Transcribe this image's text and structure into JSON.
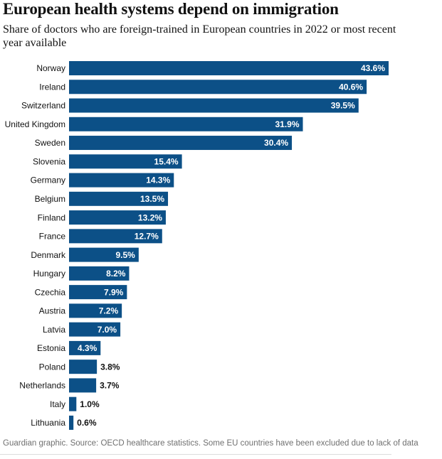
{
  "chart_data": {
    "type": "bar",
    "orientation": "horizontal",
    "title": "European health systems depend on immigration",
    "subtitle": "Share of doctors who are foreign-trained in European countries in 2022 or most recent year available",
    "categories": [
      "Norway",
      "Ireland",
      "Switzerland",
      "United Kingdom",
      "Sweden",
      "Slovenia",
      "Germany",
      "Belgium",
      "Finland",
      "France",
      "Denmark",
      "Hungary",
      "Czechia",
      "Austria",
      "Latvia",
      "Estonia",
      "Poland",
      "Netherlands",
      "Italy",
      "Lithuania"
    ],
    "values": [
      43.6,
      40.6,
      39.5,
      31.9,
      30.4,
      15.4,
      14.3,
      13.5,
      13.2,
      12.7,
      9.5,
      8.2,
      7.9,
      7.2,
      7.0,
      4.3,
      3.8,
      3.7,
      1.0,
      0.6
    ],
    "value_labels": [
      "43.6%",
      "40.6%",
      "39.5%",
      "31.9%",
      "30.4%",
      "15.4%",
      "14.3%",
      "13.5%",
      "13.2%",
      "12.7%",
      "9.5%",
      "8.2%",
      "7.9%",
      "7.2%",
      "7.0%",
      "4.3%",
      "3.8%",
      "3.7%",
      "1.0%",
      "0.6%"
    ],
    "color": "#0c5087",
    "source": "Guardian graphic. Source: OECD healthcare statistics. Some EU countries have been excluded due to lack of data"
  }
}
